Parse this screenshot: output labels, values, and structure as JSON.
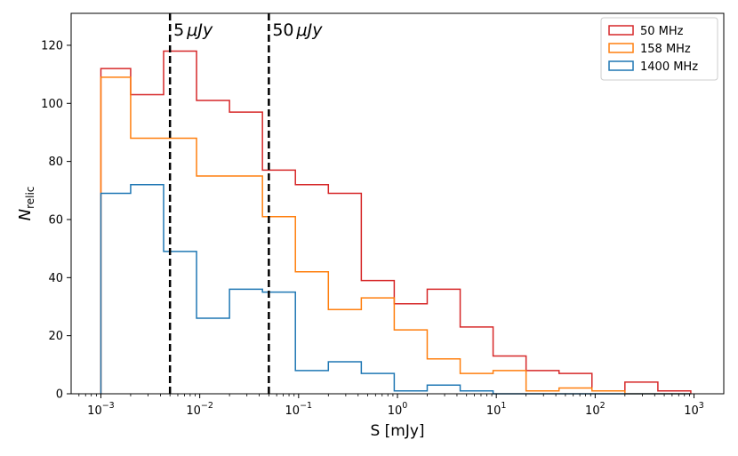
{
  "chart_data": {
    "type": "histogram",
    "xlabel": "S [mJy]",
    "ylabel_main": "N",
    "ylabel_sub": "relic",
    "x_scale": "log",
    "xlim": [
      0.0005,
      2000
    ],
    "ylim": [
      0,
      131
    ],
    "grid": false,
    "legend_position": "top-right",
    "x_ticks": [
      {
        "value": 0.001,
        "base": "10",
        "exp": "−3"
      },
      {
        "value": 0.01,
        "base": "10",
        "exp": "−2"
      },
      {
        "value": 0.1,
        "base": "10",
        "exp": "−1"
      },
      {
        "value": 1,
        "base": "10",
        "exp": "0"
      },
      {
        "value": 10,
        "base": "10",
        "exp": "1"
      },
      {
        "value": 100,
        "base": "10",
        "exp": "2"
      },
      {
        "value": 1000,
        "base": "10",
        "exp": "3"
      }
    ],
    "y_ticks": [
      0,
      20,
      40,
      60,
      80,
      100,
      120
    ],
    "bin_edges": [
      0.001,
      0.002,
      0.00431,
      0.00928,
      0.02,
      0.0431,
      0.0928,
      0.2,
      0.431,
      0.928,
      2,
      4.31,
      9.28,
      20,
      43.1,
      92.8,
      200,
      431,
      928
    ],
    "series": [
      {
        "name": "50 MHz",
        "color": "#d62728",
        "counts": [
          112,
          103,
          118,
          101,
          97,
          77,
          72,
          69,
          39,
          31,
          36,
          23,
          13,
          8,
          7,
          1,
          4,
          1
        ]
      },
      {
        "name": "158 MHz",
        "color": "#ff7f0e",
        "counts": [
          109,
          88,
          88,
          75,
          75,
          61,
          42,
          29,
          33,
          22,
          12,
          7,
          8,
          1,
          2,
          1,
          0,
          0
        ]
      },
      {
        "name": "1400 MHz",
        "color": "#1f77b4",
        "counts": [
          69,
          72,
          49,
          26,
          36,
          35,
          8,
          11,
          7,
          1,
          3,
          1,
          0,
          0,
          0,
          0,
          0,
          0
        ]
      }
    ],
    "reference_lines": [
      {
        "x": 0.005,
        "label_value": "5",
        "label_unit": "μJy"
      },
      {
        "x": 0.05,
        "label_value": "50",
        "label_unit": "μJy"
      }
    ]
  }
}
